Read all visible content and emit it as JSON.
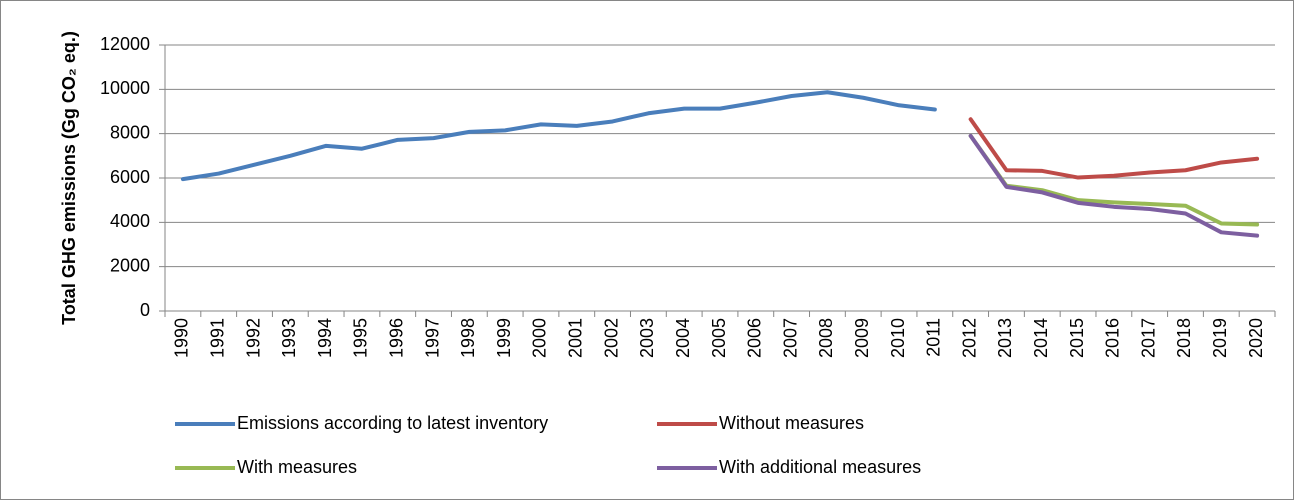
{
  "chart_data": {
    "type": "line",
    "ylabel": "Total GHG emissions (Gg CO₂ eq.)",
    "categories": [
      "1990",
      "1991",
      "1992",
      "1993",
      "1994",
      "1995",
      "1996",
      "1997",
      "1998",
      "1999",
      "2000",
      "2001",
      "2002",
      "2003",
      "2004",
      "2005",
      "2006",
      "2007",
      "2008",
      "2009",
      "2010",
      "2011",
      "2012",
      "2013",
      "2014",
      "2015",
      "2016",
      "2017",
      "2018",
      "2019",
      "2020"
    ],
    "series": [
      {
        "name": "Emissions according to latest inventory",
        "color": "#4a7ebb",
        "values": [
          5950,
          6200,
          6600,
          7000,
          7450,
          7320,
          7720,
          7800,
          8080,
          8150,
          8420,
          8350,
          8550,
          8920,
          9130,
          9130,
          9400,
          9700,
          9870,
          9620,
          9280,
          9090,
          null,
          null,
          null,
          null,
          null,
          null,
          null,
          null,
          null
        ]
      },
      {
        "name": "Without measures",
        "color": "#be4b48",
        "values": [
          null,
          null,
          null,
          null,
          null,
          null,
          null,
          null,
          null,
          null,
          null,
          null,
          null,
          null,
          null,
          null,
          null,
          null,
          null,
          null,
          null,
          null,
          8650,
          6350,
          6320,
          6020,
          6100,
          6250,
          6350,
          6700,
          6870
        ]
      },
      {
        "name": "With measures",
        "color": "#98b954",
        "values": [
          null,
          null,
          null,
          null,
          null,
          null,
          null,
          null,
          null,
          null,
          null,
          null,
          null,
          null,
          null,
          null,
          null,
          null,
          null,
          null,
          null,
          null,
          7900,
          5650,
          5450,
          5000,
          4900,
          4830,
          4750,
          3950,
          3900
        ]
      },
      {
        "name": "With additional measures",
        "color": "#7d5fa0",
        "values": [
          null,
          null,
          null,
          null,
          null,
          null,
          null,
          null,
          null,
          null,
          null,
          null,
          null,
          null,
          null,
          null,
          null,
          null,
          null,
          null,
          null,
          null,
          7900,
          5600,
          5350,
          4880,
          4700,
          4600,
          4400,
          3550,
          3400
        ]
      }
    ],
    "ylim": [
      0,
      12000
    ],
    "yticks": [
      0,
      2000,
      4000,
      6000,
      8000,
      10000,
      12000
    ],
    "grid": true,
    "legend": "bottom"
  }
}
